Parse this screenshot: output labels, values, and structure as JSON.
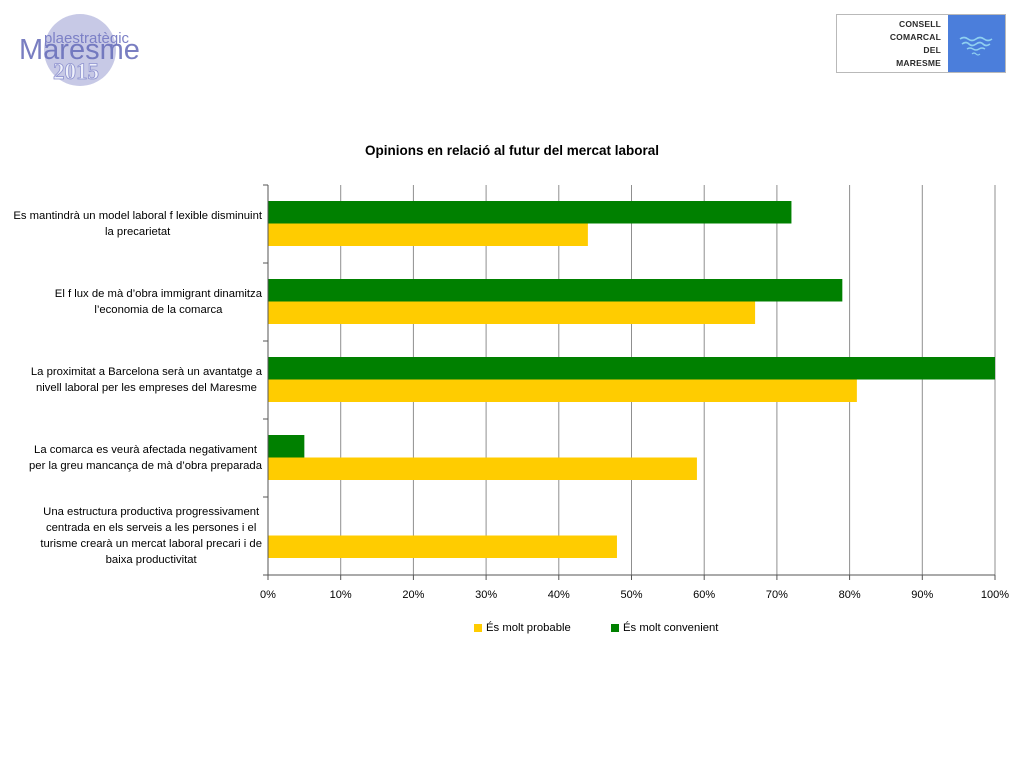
{
  "logo_left": {
    "top": "plaestratègic",
    "main": "Maresme",
    "year": "2015"
  },
  "logo_right": {
    "line1": "CONSELL",
    "line2": "COMARCAL",
    "line3": "DEL",
    "line4": "MARESME"
  },
  "chart_data": {
    "type": "bar",
    "orientation": "horizontal",
    "title": "Opinions en relació al futur del mercat laboral",
    "categories": [
      "Es mantindrà un model laboral f lexible disminuint\nla precarietat",
      "El f lux de mà d’obra immigrant dinamitza\nl’economia de la comarca",
      "La proximitat a Barcelona serà un avantatge a\nnivell laboral per les empreses del Maresme",
      "La comarca es veurà afectada negativament\nper la greu mancança de mà d’obra preparada",
      "Una estructura productiva progressivament\ncentrada en els serveis a les persones i el\nturisme crearà un mercat laboral precari i de\nbaixa productivitat"
    ],
    "series": [
      {
        "name": "És molt probable",
        "color": "#FFCC00",
        "values": [
          44,
          67,
          81,
          59,
          48
        ]
      },
      {
        "name": "És molt convenient",
        "color": "#008000",
        "values": [
          72,
          79,
          100,
          5,
          0
        ]
      }
    ],
    "xlim": [
      0,
      100
    ],
    "ticks": [
      "0%",
      "10%",
      "20%",
      "30%",
      "40%",
      "50%",
      "60%",
      "70%",
      "80%",
      "90%",
      "100%"
    ],
    "grid": true,
    "legend": "bottom"
  }
}
